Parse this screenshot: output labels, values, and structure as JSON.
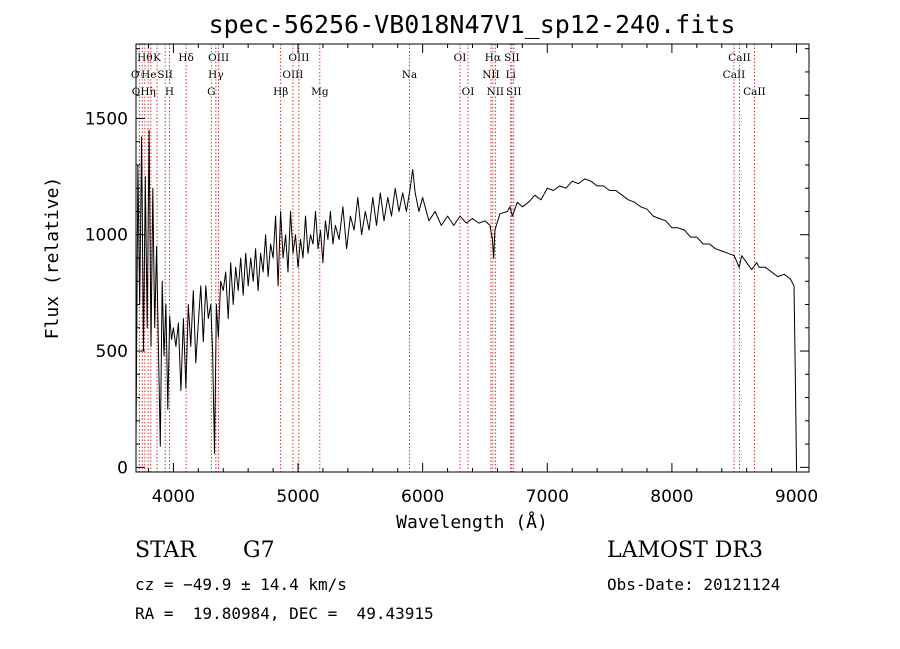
{
  "chart_data": {
    "type": "line",
    "title": "spec-56256-VB018N47V1_sp12-240.fits",
    "xlabel": "Wavelength (Å)",
    "ylabel": "Flux (relative)",
    "xlim": [
      3700,
      9100
    ],
    "ylim": [
      -20,
      1820
    ],
    "x_ticks": [
      4000,
      5000,
      6000,
      7000,
      8000,
      9000
    ],
    "x_tick_labels": [
      "4000",
      "5000",
      "6000",
      "7000",
      "8000",
      "9000"
    ],
    "y_ticks": [
      0,
      500,
      1000,
      1500
    ],
    "y_tick_labels": [
      "0",
      "500",
      "1000",
      "1500"
    ],
    "series": [
      {
        "name": "flux",
        "points": [
          [
            3700,
            100
          ],
          [
            3715,
            1300
          ],
          [
            3730,
            700
          ],
          [
            3745,
            1420
          ],
          [
            3760,
            500
          ],
          [
            3775,
            1250
          ],
          [
            3790,
            600
          ],
          [
            3805,
            1450
          ],
          [
            3820,
            520
          ],
          [
            3835,
            1200
          ],
          [
            3850,
            600
          ],
          [
            3865,
            950
          ],
          [
            3880,
            520
          ],
          [
            3895,
            90
          ],
          [
            3910,
            800
          ],
          [
            3925,
            480
          ],
          [
            3940,
            700
          ],
          [
            3955,
            250
          ],
          [
            3970,
            650
          ],
          [
            3985,
            550
          ],
          [
            4000,
            600
          ],
          [
            4020,
            520
          ],
          [
            4040,
            620
          ],
          [
            4060,
            330
          ],
          [
            4080,
            640
          ],
          [
            4100,
            340
          ],
          [
            4120,
            700
          ],
          [
            4140,
            520
          ],
          [
            4160,
            760
          ],
          [
            4180,
            450
          ],
          [
            4200,
            620
          ],
          [
            4220,
            780
          ],
          [
            4240,
            540
          ],
          [
            4260,
            780
          ],
          [
            4280,
            640
          ],
          [
            4300,
            700
          ],
          [
            4315,
            500
          ],
          [
            4330,
            60
          ],
          [
            4345,
            700
          ],
          [
            4360,
            560
          ],
          [
            4380,
            800
          ],
          [
            4400,
            760
          ],
          [
            4420,
            840
          ],
          [
            4440,
            640
          ],
          [
            4460,
            880
          ],
          [
            4480,
            700
          ],
          [
            4500,
            860
          ],
          [
            4520,
            760
          ],
          [
            4540,
            900
          ],
          [
            4560,
            740
          ],
          [
            4580,
            920
          ],
          [
            4600,
            780
          ],
          [
            4620,
            900
          ],
          [
            4640,
            800
          ],
          [
            4660,
            940
          ],
          [
            4680,
            760
          ],
          [
            4700,
            920
          ],
          [
            4720,
            840
          ],
          [
            4740,
            1000
          ],
          [
            4760,
            820
          ],
          [
            4780,
            960
          ],
          [
            4800,
            900
          ],
          [
            4820,
            1080
          ],
          [
            4840,
            780
          ],
          [
            4860,
            1100
          ],
          [
            4880,
            900
          ],
          [
            4900,
            1000
          ],
          [
            4920,
            840
          ],
          [
            4940,
            1100
          ],
          [
            4960,
            920
          ],
          [
            4980,
            1000
          ],
          [
            5000,
            860
          ],
          [
            5020,
            980
          ],
          [
            5040,
            900
          ],
          [
            5060,
            1080
          ],
          [
            5080,
            920
          ],
          [
            5100,
            1000
          ],
          [
            5120,
            960
          ],
          [
            5140,
            1100
          ],
          [
            5160,
            940
          ],
          [
            5180,
            1020
          ],
          [
            5200,
            880
          ],
          [
            5220,
            1060
          ],
          [
            5240,
            980
          ],
          [
            5260,
            1100
          ],
          [
            5280,
            960
          ],
          [
            5300,
            1040
          ],
          [
            5330,
            980
          ],
          [
            5360,
            1120
          ],
          [
            5390,
            940
          ],
          [
            5420,
            1080
          ],
          [
            5450,
            1020
          ],
          [
            5480,
            1160
          ],
          [
            5510,
            1000
          ],
          [
            5540,
            1100
          ],
          [
            5570,
            1020
          ],
          [
            5600,
            1160
          ],
          [
            5630,
            1040
          ],
          [
            5660,
            1180
          ],
          [
            5690,
            1060
          ],
          [
            5720,
            1160
          ],
          [
            5750,
            1080
          ],
          [
            5780,
            1200
          ],
          [
            5810,
            1100
          ],
          [
            5840,
            1180
          ],
          [
            5870,
            1100
          ],
          [
            5900,
            1200
          ],
          [
            5920,
            1280
          ],
          [
            5940,
            1180
          ],
          [
            5970,
            1100
          ],
          [
            6000,
            1160
          ],
          [
            6050,
            1060
          ],
          [
            6100,
            1100
          ],
          [
            6150,
            1040
          ],
          [
            6200,
            1080
          ],
          [
            6250,
            1040
          ],
          [
            6300,
            1080
          ],
          [
            6350,
            1050
          ],
          [
            6400,
            1070
          ],
          [
            6450,
            1050
          ],
          [
            6500,
            1060
          ],
          [
            6540,
            1040
          ],
          [
            6560,
            980
          ],
          [
            6570,
            900
          ],
          [
            6580,
            1020
          ],
          [
            6620,
            1090
          ],
          [
            6680,
            1100
          ],
          [
            6700,
            1120
          ],
          [
            6720,
            1080
          ],
          [
            6760,
            1140
          ],
          [
            6800,
            1120
          ],
          [
            6850,
            1140
          ],
          [
            6900,
            1170
          ],
          [
            6950,
            1150
          ],
          [
            7000,
            1200
          ],
          [
            7050,
            1190
          ],
          [
            7100,
            1210
          ],
          [
            7150,
            1200
          ],
          [
            7200,
            1230
          ],
          [
            7250,
            1220
          ],
          [
            7300,
            1240
          ],
          [
            7350,
            1230
          ],
          [
            7400,
            1210
          ],
          [
            7450,
            1210
          ],
          [
            7500,
            1190
          ],
          [
            7550,
            1190
          ],
          [
            7600,
            1170
          ],
          [
            7650,
            1150
          ],
          [
            7700,
            1140
          ],
          [
            7750,
            1120
          ],
          [
            7800,
            1110
          ],
          [
            7850,
            1080
          ],
          [
            7900,
            1070
          ],
          [
            7950,
            1060
          ],
          [
            8000,
            1030
          ],
          [
            8050,
            1030
          ],
          [
            8100,
            1020
          ],
          [
            8150,
            990
          ],
          [
            8200,
            990
          ],
          [
            8250,
            960
          ],
          [
            8300,
            960
          ],
          [
            8350,
            940
          ],
          [
            8400,
            930
          ],
          [
            8450,
            920
          ],
          [
            8500,
            910
          ],
          [
            8540,
            860
          ],
          [
            8560,
            910
          ],
          [
            8600,
            880
          ],
          [
            8640,
            850
          ],
          [
            8680,
            880
          ],
          [
            8700,
            860
          ],
          [
            8750,
            860
          ],
          [
            8800,
            840
          ],
          [
            8850,
            820
          ],
          [
            8900,
            830
          ],
          [
            8950,
            810
          ],
          [
            8980,
            780
          ],
          [
            8990,
            400
          ],
          [
            9000,
            0
          ]
        ]
      }
    ],
    "line_markers": [
      {
        "wl": 3727,
        "label": "OII",
        "row": 2
      },
      {
        "wl": 3750,
        "label": "OIII",
        "row": 3
      },
      {
        "wl": 3771,
        "label": "Hθ",
        "row": 1
      },
      {
        "wl": 3797,
        "label": "Hη",
        "row": 3
      },
      {
        "wl": 3819,
        "label": "HeI",
        "row": 2
      },
      {
        "wl": 3869,
        "label": "K",
        "row": 1
      },
      {
        "wl": 3934,
        "label": "SII",
        "row": 2
      },
      {
        "wl": 3968,
        "label": "H",
        "row": 3
      },
      {
        "wl": 4102,
        "label": "Hδ",
        "row": 1
      },
      {
        "wl": 4304,
        "label": "G",
        "row": 3
      },
      {
        "wl": 4341,
        "label": "Hγ",
        "row": 2
      },
      {
        "wl": 4363,
        "label": "OIII",
        "row": 1
      },
      {
        "wl": 4861,
        "label": "Hβ",
        "row": 3
      },
      {
        "wl": 4959,
        "label": "OIII",
        "row": 2
      },
      {
        "wl": 5007,
        "label": "OIII",
        "row": 1
      },
      {
        "wl": 5175,
        "label": "Mg",
        "row": 3
      },
      {
        "wl": 5894,
        "label": "Na",
        "row": 2
      },
      {
        "wl": 6300,
        "label": "OI",
        "row": 1
      },
      {
        "wl": 6364,
        "label": "OI",
        "row": 3
      },
      {
        "wl": 6548,
        "label": "NII",
        "row": 2
      },
      {
        "wl": 6563,
        "label": "Hα",
        "row": 1
      },
      {
        "wl": 6583,
        "label": "NII",
        "row": 3
      },
      {
        "wl": 6707,
        "label": "Li",
        "row": 2
      },
      {
        "wl": 6716,
        "label": "SII",
        "row": 1
      },
      {
        "wl": 6731,
        "label": "SII",
        "row": 3
      },
      {
        "wl": 8498,
        "label": "CaII",
        "row": 2
      },
      {
        "wl": 8542,
        "label": "CaII",
        "row": 1
      },
      {
        "wl": 8662,
        "label": "CaII",
        "row": 3
      }
    ],
    "line_color": "#cc0000"
  },
  "info": {
    "object_class": "STAR",
    "subclass": "G7",
    "survey": "LAMOST DR3",
    "cz": "cz = −49.9 ± 14.4 km/s",
    "obs_date": "Obs-Date: 20121124",
    "coords": "RA =  19.80984, DEC =  49.43915"
  }
}
